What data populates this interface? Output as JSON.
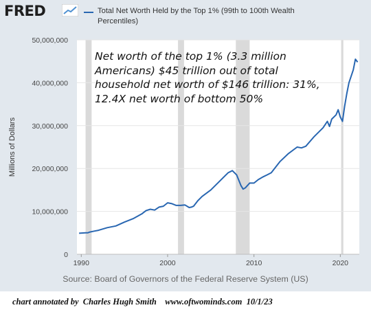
{
  "brand": {
    "logo_text": "FRED",
    "logo_icon": "trend-line-icon"
  },
  "colors": {
    "series": "#2866b1",
    "recession": "#dadada",
    "frame": "#e2e8ee"
  },
  "chart_data": {
    "type": "line",
    "title": "Total Net Worth Held by the Top 1% (99th to 100th Wealth Percentiles)",
    "ylabel": "Millions of Dollars",
    "xlabel": "",
    "xlim": [
      1989.5,
      2022.2
    ],
    "ylim": [
      0,
      50000000
    ],
    "x_ticks": [
      1990,
      2000,
      2010,
      2020
    ],
    "x_tick_labels": [
      "1990",
      "2000",
      "2010",
      "2020"
    ],
    "y_ticks": [
      0,
      10000000,
      20000000,
      30000000,
      40000000,
      50000000
    ],
    "y_tick_labels": [
      "0",
      "10,000,000",
      "20,000,000",
      "30,000,000",
      "40,000,000",
      "50,000,000"
    ],
    "grid": true,
    "legend_position": "top",
    "recession_bands": [
      [
        1990.5,
        1991.2
      ],
      [
        2001.2,
        2001.9
      ],
      [
        2007.9,
        2009.5
      ],
      [
        2020.1,
        2020.35
      ]
    ],
    "series": [
      {
        "name": "Total Net Worth Held by the Top 1% (99th to 100th Wealth Percentiles)",
        "x": [
          1989.75,
          1990.5,
          1990.75,
          1991.0,
          1991.5,
          1992.0,
          1993.0,
          1994.0,
          1995.0,
          1996.0,
          1997.0,
          1997.5,
          1998.0,
          1998.5,
          1999.0,
          1999.5,
          2000.0,
          2000.5,
          2001.0,
          2001.5,
          2002.0,
          2002.5,
          2002.75,
          2003.0,
          2003.5,
          2004.0,
          2005.0,
          2006.0,
          2007.0,
          2007.5,
          2008.0,
          2008.5,
          2008.75,
          2009.0,
          2009.5,
          2010.0,
          2010.5,
          2011.0,
          2011.5,
          2012.0,
          2013.0,
          2014.0,
          2015.0,
          2015.5,
          2016.0,
          2017.0,
          2018.0,
          2018.5,
          2018.75,
          2019.0,
          2019.5,
          2019.75,
          2020.0,
          2020.25,
          2020.5,
          2020.75,
          2021.0,
          2021.5,
          2021.75,
          2022.0
        ],
        "values": [
          4900000,
          5000000,
          5000000,
          5200000,
          5400000,
          5600000,
          6200000,
          6600000,
          7500000,
          8300000,
          9400000,
          10200000,
          10500000,
          10300000,
          11000000,
          11200000,
          12000000,
          11800000,
          11400000,
          11400000,
          11500000,
          10900000,
          11000000,
          11200000,
          12500000,
          13500000,
          15000000,
          17000000,
          19000000,
          19500000,
          18500000,
          16000000,
          15200000,
          15500000,
          16600000,
          16600000,
          17400000,
          18000000,
          18500000,
          19000000,
          21600000,
          23500000,
          25000000,
          24800000,
          25200000,
          27500000,
          29500000,
          31000000,
          29800000,
          31500000,
          32500000,
          33700000,
          32000000,
          31000000,
          34500000,
          37500000,
          40000000,
          43000000,
          45500000,
          44800000
        ]
      }
    ],
    "source": "Source: Board of Governors of the Federal Reserve System (US)",
    "annotation": "Net worth of the top 1% (3.3 million Americans) $45 trillion out of total household net worth of $146 trillion: 31%, 12.4X net worth of bottom 50%"
  },
  "footer": {
    "text": "chart annotated by  Charles Hugh Smith    www.oftwominds.com  10/1/23"
  }
}
